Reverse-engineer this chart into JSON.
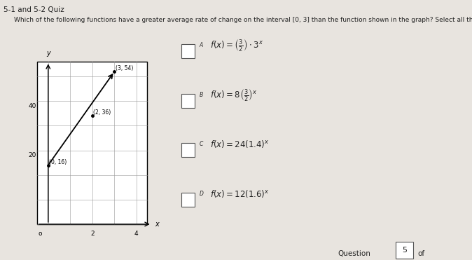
{
  "title": "5-1 and 5-2 Quiz",
  "question": "Which of the following functions have a greater average rate of change on the interval [0, 3] than the function shown in the graph? Select all that apply.",
  "graph_points": [
    [
      0,
      16
    ],
    [
      2,
      36
    ],
    [
      3,
      54
    ]
  ],
  "graph_xticks": [
    2,
    4
  ],
  "graph_yticks": [
    20,
    40
  ],
  "choice_labels": [
    "A",
    "B",
    "C",
    "D"
  ],
  "choice_math": [
    "$f(x) = \\left(\\frac{3}{2}\\right) \\cdot 3^x$",
    "$f(x) = 8\\left(\\frac{3}{2}\\right)^x$",
    "$f(x) = 24(1.4)^x$",
    "$f(x) = 12(1.6)^x$"
  ],
  "bg_color": "#e8e4df",
  "graph_bg": "#ffffff",
  "text_color": "#222222",
  "footer_text": "Question",
  "question_number": "5",
  "footer_of": "of"
}
